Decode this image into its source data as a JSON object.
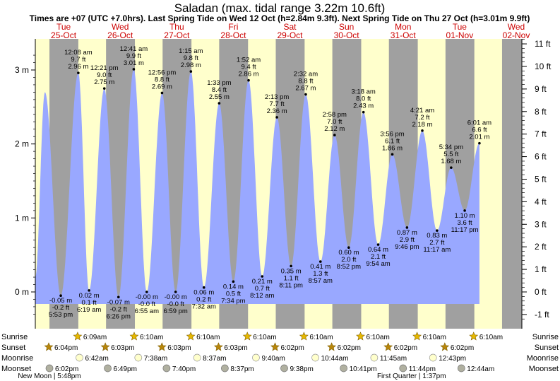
{
  "title": "Saladan (max. tidal range 3.22m 10.6ft)",
  "subtitle": "Times are +07 (UTC +7.0hrs). Last Spring Tide on Wed 12 Oct (h=2.84m 9.3ft). Next Spring Tide on Thu 27 Oct (h=3.01m 9.9ft)",
  "chart_data": {
    "type": "area",
    "days": [
      {
        "dow": "Tue",
        "date": "25-Oct"
      },
      {
        "dow": "Wed",
        "date": "26-Oct"
      },
      {
        "dow": "Thu",
        "date": "27-Oct"
      },
      {
        "dow": "Fri",
        "date": "28-Oct"
      },
      {
        "dow": "Sat",
        "date": "29-Oct"
      },
      {
        "dow": "Sun",
        "date": "30-Oct"
      },
      {
        "dow": "Mon",
        "date": "31-Oct"
      },
      {
        "dow": "Tue",
        "date": "01-Nov"
      },
      {
        "dow": "Wed",
        "date": "02-Nov"
      }
    ],
    "y_left": {
      "unit": "m",
      "range": [
        -0.35,
        3.2
      ],
      "ticks": [
        "3 m",
        "2 m",
        "1 m",
        "0 m"
      ],
      "tick_values": [
        3,
        2,
        1,
        0
      ]
    },
    "y_right": {
      "unit": "ft",
      "ticks": [
        "11 ft",
        "10 ft",
        "9 ft",
        "8 ft",
        "7 ft",
        "6 ft",
        "5 ft",
        "4 ft",
        "3 ft",
        "2 ft",
        "1 ft",
        "0 ft",
        "-1 ft"
      ],
      "tick_values": [
        11,
        10,
        9,
        8,
        7,
        6,
        5,
        4,
        3,
        2,
        1,
        0,
        -1
      ]
    },
    "unlabeled_peak": {
      "t": 0.67,
      "h": 2.7
    },
    "extremes": [
      {
        "t": 0.95,
        "h": -0.05,
        "type": "low",
        "m": "-0.05 m",
        "ft": "-0.2 ft",
        "time": "5:53 pm"
      },
      {
        "t": 1.26,
        "h": 2.96,
        "type": "high",
        "time": "12:08 am",
        "ft": "9.7 ft",
        "m": "2.96 m"
      },
      {
        "t": 1.45,
        "h": 0.02,
        "type": "low",
        "m": "0.02 m",
        "ft": "0.1 ft",
        "time": "6:19 am"
      },
      {
        "t": 1.72,
        "h": 2.75,
        "type": "high",
        "time": "12:21 pm",
        "ft": "9.0 ft",
        "m": "2.75 m"
      },
      {
        "t": 1.97,
        "h": -0.07,
        "type": "low",
        "m": "-0.07 m",
        "ft": "-0.2 ft",
        "time": "6:26 pm"
      },
      {
        "t": 2.24,
        "h": 3.01,
        "type": "high",
        "time": "12:41 am",
        "ft": "9.9 ft",
        "m": "3.01 m"
      },
      {
        "t": 2.47,
        "h": 0.0,
        "type": "low",
        "m": "-0.00 m",
        "ft": "-0.0 ft",
        "time": "6:55 am"
      },
      {
        "t": 2.74,
        "h": 2.69,
        "type": "high",
        "time": "12:56 pm",
        "ft": "8.8 ft",
        "m": "2.69 m"
      },
      {
        "t": 2.98,
        "h": 0.0,
        "type": "low",
        "m": "-0.00 m",
        "ft": "-0.0 ft",
        "time": "6:59 pm"
      },
      {
        "t": 3.25,
        "h": 2.98,
        "type": "high",
        "time": "1:15 am",
        "ft": "9.8 ft",
        "m": "2.98 m"
      },
      {
        "t": 3.48,
        "h": 0.06,
        "type": "low",
        "m": "0.06 m",
        "ft": "0.2 ft",
        "time": "7:32 am"
      },
      {
        "t": 3.75,
        "h": 2.55,
        "type": "high",
        "time": "1:33 pm",
        "ft": "8.4 ft",
        "m": "2.55 m"
      },
      {
        "t": 4.0,
        "h": 0.14,
        "type": "low",
        "m": "0.14 m",
        "ft": "0.5 ft",
        "time": "7:34 pm"
      },
      {
        "t": 4.27,
        "h": 2.86,
        "type": "high",
        "time": "1:52 am",
        "ft": "9.4 ft",
        "m": "2.86 m"
      },
      {
        "t": 4.51,
        "h": 0.21,
        "type": "low",
        "m": "0.21 m",
        "ft": "0.7 ft",
        "time": "8:12 am"
      },
      {
        "t": 4.77,
        "h": 2.36,
        "type": "high",
        "time": "2:13 pm",
        "ft": "7.7 ft",
        "m": "2.36 m"
      },
      {
        "t": 5.02,
        "h": 0.35,
        "type": "low",
        "m": "0.35 m",
        "ft": "1.1 ft",
        "time": "8:11 pm"
      },
      {
        "t": 5.28,
        "h": 2.67,
        "type": "high",
        "time": "2:32 am",
        "ft": "8.8 ft",
        "m": "2.67 m"
      },
      {
        "t": 5.54,
        "h": 0.41,
        "type": "low",
        "m": "0.41 m",
        "ft": "1.3 ft",
        "time": "8:57 am"
      },
      {
        "t": 5.79,
        "h": 2.12,
        "type": "high",
        "time": "2:58 pm",
        "ft": "7.0 ft",
        "m": "2.12 m"
      },
      {
        "t": 6.04,
        "h": 0.6,
        "type": "low",
        "m": "0.60 m",
        "ft": "2.0 ft",
        "time": "8:52 pm"
      },
      {
        "t": 6.3,
        "h": 2.43,
        "type": "high",
        "time": "3:18 am",
        "ft": "8.0 ft",
        "m": "2.43 m"
      },
      {
        "t": 6.56,
        "h": 0.64,
        "type": "low",
        "m": "0.64 m",
        "ft": "2.1 ft",
        "time": "9:54 am"
      },
      {
        "t": 6.81,
        "h": 1.86,
        "type": "high",
        "time": "3:56 pm",
        "ft": "6.1 ft",
        "m": "1.86 m"
      },
      {
        "t": 7.07,
        "h": 0.87,
        "type": "low",
        "m": "0.87 m",
        "ft": "2.9 ft",
        "time": "9:46 pm"
      },
      {
        "t": 7.34,
        "h": 2.18,
        "type": "high",
        "time": "4:21 am",
        "ft": "7.2 ft",
        "m": "2.18 m"
      },
      {
        "t": 7.6,
        "h": 0.83,
        "type": "low",
        "m": "0.83 m",
        "ft": "2.7 ft",
        "time": "11:17 am"
      },
      {
        "t": 7.85,
        "h": 1.68,
        "type": "high",
        "time": "5:34 pm",
        "ft": "5.5 ft",
        "m": "1.68 m"
      },
      {
        "t": 8.09,
        "h": 1.1,
        "type": "low",
        "m": "1.10 m",
        "ft": "3.6 ft",
        "time": "11:17 pm"
      },
      {
        "t": 8.35,
        "h": 2.01,
        "type": "high",
        "time": "6:01 am",
        "ft": "6.6 ft",
        "m": "2.01 m"
      }
    ],
    "night_bands": [
      [
        0.75,
        1.26
      ],
      [
        1.75,
        2.26
      ],
      [
        2.75,
        3.26
      ],
      [
        3.75,
        4.26
      ],
      [
        4.75,
        5.26
      ],
      [
        5.75,
        6.26
      ],
      [
        6.75,
        7.26
      ],
      [
        7.75,
        8.26
      ],
      [
        8.75,
        9.1
      ]
    ],
    "colors": {
      "day": "#ffffcc",
      "night": "#a0a0a0",
      "water": "#99a8ff",
      "title_days": "#cc0000",
      "sun": "#e6b800",
      "sunset": "#b8860b",
      "moonrise": "#ffffcc",
      "moonset": "#b0b0a0"
    }
  },
  "sun_moon": {
    "labels": {
      "sunrise": "Sunrise",
      "sunset": "Sunset",
      "moonrise": "Moonrise",
      "moonset": "Moonset"
    },
    "sunrise": [
      {
        "t": 1.26,
        "text": "6:09am"
      },
      {
        "t": 2.26,
        "text": "6:10am"
      },
      {
        "t": 3.26,
        "text": "6:10am"
      },
      {
        "t": 4.26,
        "text": "6:10am"
      },
      {
        "t": 5.26,
        "text": "6:10am"
      },
      {
        "t": 6.26,
        "text": "6:10am"
      },
      {
        "t": 7.26,
        "text": "6:10am"
      },
      {
        "t": 8.26,
        "text": "6:10am"
      }
    ],
    "sunset": [
      {
        "t": 0.75,
        "text": "6:04pm"
      },
      {
        "t": 1.75,
        "text": "6:03pm"
      },
      {
        "t": 2.75,
        "text": "6:03pm"
      },
      {
        "t": 3.75,
        "text": "6:03pm"
      },
      {
        "t": 4.75,
        "text": "6:02pm"
      },
      {
        "t": 5.75,
        "text": "6:02pm"
      },
      {
        "t": 6.75,
        "text": "6:02pm"
      },
      {
        "t": 7.75,
        "text": "6:02pm"
      }
    ],
    "moonrise": [
      {
        "t": 1.28,
        "text": "6:42am"
      },
      {
        "t": 2.32,
        "text": "7:38am"
      },
      {
        "t": 3.36,
        "text": "8:37am"
      },
      {
        "t": 4.4,
        "text": "9:40am"
      },
      {
        "t": 5.45,
        "text": "10:44am"
      },
      {
        "t": 6.49,
        "text": "11:45am"
      },
      {
        "t": 7.53,
        "text": "12:43pm"
      }
    ],
    "moonset": [
      {
        "t": 0.75,
        "text": "6:02pm"
      },
      {
        "t": 1.78,
        "text": "6:49pm"
      },
      {
        "t": 2.82,
        "text": "7:40pm"
      },
      {
        "t": 3.85,
        "text": "8:37pm"
      },
      {
        "t": 4.9,
        "text": "9:38pm"
      },
      {
        "t": 5.95,
        "text": "10:41pm"
      },
      {
        "t": 7.0,
        "text": "11:44pm"
      },
      {
        "t": 8.03,
        "text": "12:44am"
      }
    ],
    "phases": [
      {
        "t": 0.75,
        "text": "New Moon | 5:48pm"
      },
      {
        "t": 7.15,
        "text": "First Quarter | 1:37pm"
      }
    ]
  }
}
